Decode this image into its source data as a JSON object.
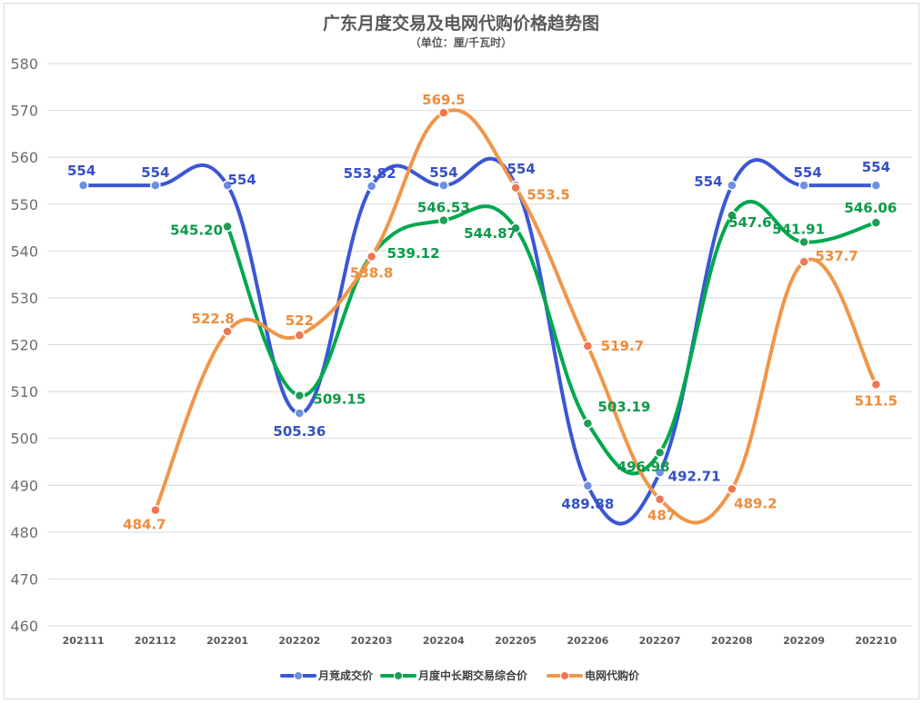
{
  "chart_data": {
    "type": "line",
    "title": "广东月度交易及电网代购价格趋势图",
    "subtitle": "（单位：厘/千瓦时）",
    "categories": [
      "202111",
      "202112",
      "202201",
      "202202",
      "202203",
      "202204",
      "202205",
      "202206",
      "202207",
      "202208",
      "202209",
      "202210"
    ],
    "ylim": [
      460,
      580
    ],
    "yticks": [
      460,
      470,
      480,
      490,
      500,
      510,
      520,
      530,
      540,
      550,
      560,
      570,
      580
    ],
    "legend_position": "bottom",
    "series": [
      {
        "name": "月竞成交价",
        "color": "#3a57d4",
        "marker": "#6c8fe0",
        "values": [
          554,
          554,
          554,
          505.36,
          553.82,
          554,
          554,
          489.88,
          492.71,
          554,
          554,
          554
        ],
        "labels": [
          "554",
          "554",
          "554",
          "505.36",
          "553.82",
          "554",
          "554",
          "489.88",
          "492.71",
          "554",
          "554",
          "554"
        ]
      },
      {
        "name": "月度中长期交易综合价",
        "color": "#00a84f",
        "marker": "#1f9d55",
        "values": [
          null,
          null,
          545.2,
          509.15,
          539.12,
          546.53,
          544.87,
          503.19,
          496.98,
          547.6,
          541.91,
          546.06
        ],
        "labels": [
          null,
          null,
          "545.20",
          "509.15",
          "539.12",
          "546.53",
          "544.87",
          "503.19",
          "496.98",
          "547.6",
          "541.91",
          "546.06"
        ]
      },
      {
        "name": "电网代购价",
        "color": "#f0964a",
        "marker": "#ee7752",
        "values": [
          null,
          484.7,
          522.8,
          522,
          538.8,
          569.5,
          553.5,
          519.7,
          487,
          489.2,
          537.7,
          511.5
        ],
        "labels": [
          null,
          "484.7",
          "522.8",
          "522",
          "538.8",
          "569.5",
          "553.5",
          "519.7",
          "487",
          "489.2",
          "537.7",
          "511.5"
        ]
      }
    ]
  }
}
